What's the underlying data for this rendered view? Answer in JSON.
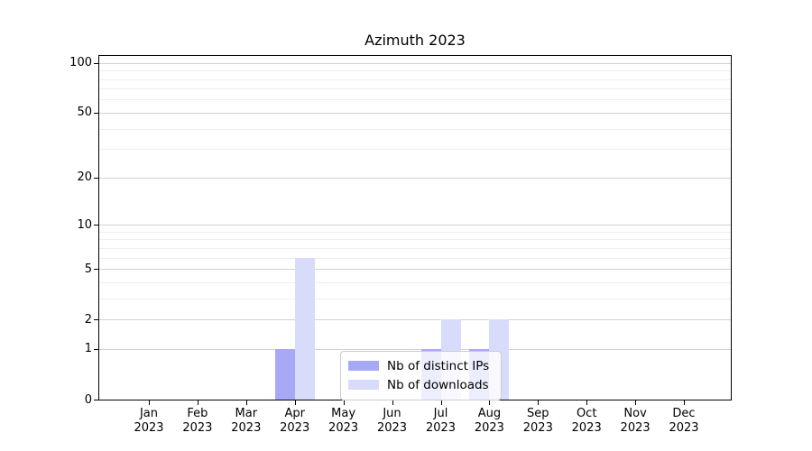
{
  "figure": {
    "background": "#ffffff"
  },
  "chart_data": {
    "type": "bar",
    "title": "Azimuth 2023",
    "categories": [
      "Jan 2023",
      "Feb 2023",
      "Mar 2023",
      "Apr 2023",
      "May 2023",
      "Jun 2023",
      "Jul 2023",
      "Aug 2023",
      "Sep 2023",
      "Oct 2023",
      "Nov 2023",
      "Dec 2023"
    ],
    "series": [
      {
        "name": "Nb of distinct IPs",
        "color": "#a7a9f6",
        "values": [
          0,
          0,
          0,
          1,
          0,
          0,
          1,
          1,
          0,
          0,
          0,
          0
        ]
      },
      {
        "name": "Nb of downloads",
        "color": "#d9dbfa",
        "values": [
          0,
          0,
          0,
          6,
          0,
          0,
          2,
          2,
          0,
          0,
          0,
          0
        ]
      }
    ],
    "xlabel": "",
    "ylabel": "",
    "yscale": "log1p",
    "ylim": [
      0,
      110
    ],
    "y_ticks": [
      0,
      1,
      2,
      5,
      10,
      20,
      50,
      100
    ],
    "y_minor_gridlines": [
      3,
      4,
      6,
      7,
      8,
      9,
      30,
      40,
      60,
      70,
      80,
      90
    ],
    "grid": "horizontal major and minor",
    "legend_position": "lower center, inside plot"
  },
  "colors": {
    "axis": "#000000",
    "grid_major": "#d2d2d2",
    "grid_minor": "#efefef",
    "legend_border": "#cccccc",
    "legend_background": "rgba(255,255,255,0.8)",
    "text": "#000000"
  }
}
